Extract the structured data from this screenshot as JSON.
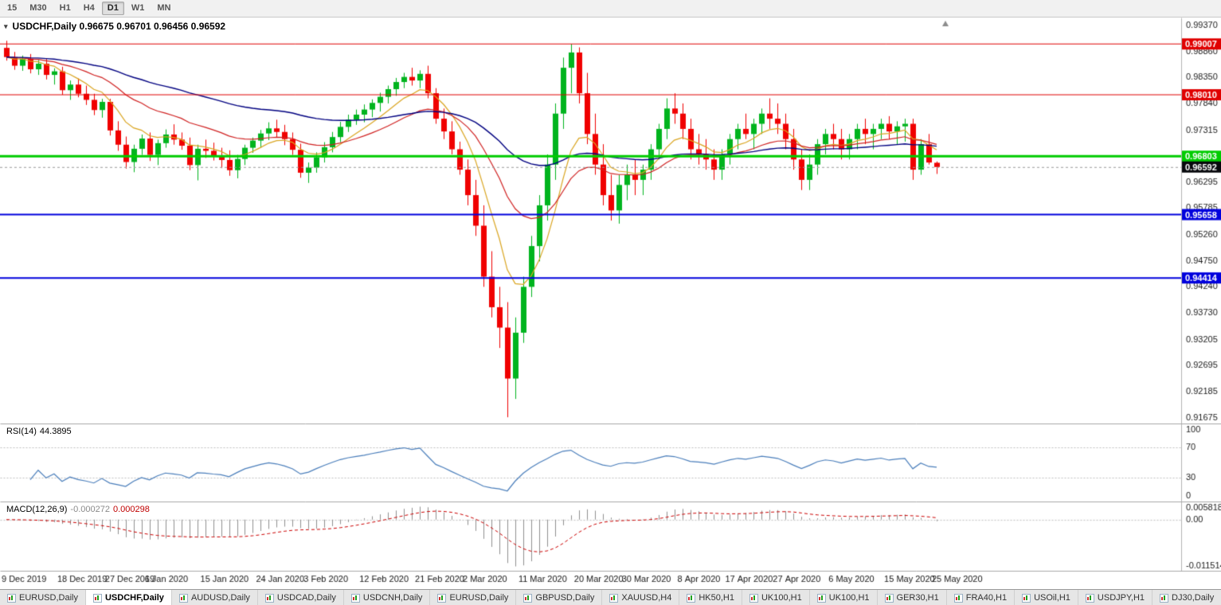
{
  "toolbar": {
    "timeframes": [
      {
        "label": "15",
        "active": false
      },
      {
        "label": "M30",
        "active": false
      },
      {
        "label": "H1",
        "active": false
      },
      {
        "label": "H4",
        "active": false
      },
      {
        "label": "D1",
        "active": true
      },
      {
        "label": "W1",
        "active": false
      },
      {
        "label": "MN",
        "active": false
      }
    ]
  },
  "chart": {
    "title": "USDCHF,Daily 0.96675 0.96701 0.96456 0.96592",
    "menu_triangle": "▾"
  },
  "price_axis": {
    "tick_labels": [
      "0.99370",
      "0.98860",
      "0.98350",
      "0.97840",
      "0.97315",
      "0.96805",
      "0.96295",
      "0.95785",
      "0.95260",
      "0.94750",
      "0.94240",
      "0.93730",
      "0.93205",
      "0.92695",
      "0.92185",
      "0.91675"
    ]
  },
  "levels": [
    {
      "value": 0.99007,
      "label": "0.99007",
      "color": "#e00000",
      "line_width": 1
    },
    {
      "value": 0.9801,
      "label": "0.98010",
      "color": "#e00000",
      "line_width": 1
    },
    {
      "value": 0.96803,
      "label": "0.96803",
      "color": "#00cc00",
      "line_width": 3
    },
    {
      "value": 0.95658,
      "label": "0.95658",
      "color": "#0000dd",
      "line_width": 2
    },
    {
      "value": 0.94414,
      "label": "0.94414",
      "color": "#0000dd",
      "line_width": 2
    }
  ],
  "current_price": {
    "value": 0.96592,
    "label": "0.96592",
    "box_color": "#07080c"
  },
  "indicators": {
    "rsi": {
      "name_label": "RSI(14)",
      "value_label": "44.3895",
      "period": 14,
      "levels": [
        "100",
        "70",
        "30",
        "0"
      ],
      "line_color": "#4a7ebb"
    },
    "macd": {
      "name_label": "MACD(12,26,9)",
      "main_value": "-0.000272",
      "signal_value": "0.000298",
      "fast": 12,
      "slow": 26,
      "signal": 9,
      "axis_top": "0.0058180",
      "axis_zero": "0.00",
      "axis_bottom": "-0.0115140",
      "hist_color": "#8f8f8f",
      "signal_color": "#cc0000"
    }
  },
  "x_axis": {
    "labels": [
      {
        "i": 0,
        "text": "9 Dec 2019"
      },
      {
        "i": 7,
        "text": "18 Dec 2019"
      },
      {
        "i": 13,
        "text": "27 Dec 2019"
      },
      {
        "i": 18,
        "text": "6 Jan 2020"
      },
      {
        "i": 25,
        "text": "15 Jan 2020"
      },
      {
        "i": 32,
        "text": "24 Jan 2020"
      },
      {
        "i": 38,
        "text": "3 Feb 2020"
      },
      {
        "i": 45,
        "text": "12 Feb 2020"
      },
      {
        "i": 52,
        "text": "21 Feb 2020"
      },
      {
        "i": 58,
        "text": "2 Mar 2020"
      },
      {
        "i": 65,
        "text": "11 Mar 2020"
      },
      {
        "i": 72,
        "text": "20 Mar 2020"
      },
      {
        "i": 78,
        "text": "30 Mar 2020"
      },
      {
        "i": 85,
        "text": "8 Apr 2020"
      },
      {
        "i": 91,
        "text": "17 Apr 2020"
      },
      {
        "i": 97,
        "text": "27 Apr 2020"
      },
      {
        "i": 104,
        "text": "6 May 2020"
      },
      {
        "i": 111,
        "text": "15 May 2020"
      },
      {
        "i": 117,
        "text": "25 May 2020"
      }
    ]
  },
  "bottom_tabs": [
    {
      "label": "EURUSD,Daily",
      "active": false
    },
    {
      "label": "USDCHF,Daily",
      "active": true
    },
    {
      "label": "AUDUSD,Daily",
      "active": false
    },
    {
      "label": "USDCAD,Daily",
      "active": false
    },
    {
      "label": "USDCNH,Daily",
      "active": false
    },
    {
      "label": "EURUSD,Daily",
      "active": false
    },
    {
      "label": "GBPUSD,Daily",
      "active": false
    },
    {
      "label": "XAUUSD,H4",
      "active": false
    },
    {
      "label": "HK50,H1",
      "active": false
    },
    {
      "label": "UK100,H1",
      "active": false
    },
    {
      "label": "UK100,H1",
      "active": false
    },
    {
      "label": "GER30,H1",
      "active": false
    },
    {
      "label": "FRA40,H1",
      "active": false
    },
    {
      "label": "USOil,H1",
      "active": false
    },
    {
      "label": "USDJPY,H1",
      "active": false
    },
    {
      "label": "DJ30,Daily",
      "active": false
    }
  ],
  "chart_data": {
    "type": "candlestick",
    "symbol": "USDCHF",
    "timeframe": "Daily",
    "title": "USDCHF,Daily",
    "ohlc_current": {
      "open": 0.96675,
      "high": 0.96701,
      "low": 0.96456,
      "close": 0.96592
    },
    "ylim": [
      0.91675,
      0.9937
    ],
    "colors": {
      "up": "#00b41e",
      "down": "#f00000"
    },
    "moving_averages": [
      {
        "period": 8,
        "color": "#daa520",
        "width": 1.2
      },
      {
        "period": 21,
        "color": "#d02020",
        "width": 1.2
      },
      {
        "period": 55,
        "color": "#000080",
        "width": 1.4
      }
    ],
    "support_resistance": [
      0.99007,
      0.9801,
      0.96803,
      0.95658,
      0.94414
    ],
    "candles": [
      [
        0.9893,
        0.9907,
        0.9868,
        0.9875
      ],
      [
        0.9875,
        0.9885,
        0.985,
        0.9858
      ],
      [
        0.9858,
        0.9878,
        0.9848,
        0.9872
      ],
      [
        0.9872,
        0.9881,
        0.9843,
        0.9851
      ],
      [
        0.9851,
        0.9869,
        0.984,
        0.9862
      ],
      [
        0.9862,
        0.9871,
        0.9831,
        0.984
      ],
      [
        0.984,
        0.9853,
        0.9821,
        0.9847
      ],
      [
        0.9847,
        0.9856,
        0.9801,
        0.981
      ],
      [
        0.981,
        0.9829,
        0.9791,
        0.9821
      ],
      [
        0.9821,
        0.9833,
        0.9796,
        0.9803
      ],
      [
        0.9803,
        0.9819,
        0.9781,
        0.9791
      ],
      [
        0.9791,
        0.9803,
        0.9761,
        0.9771
      ],
      [
        0.9771,
        0.9793,
        0.9756,
        0.9787
      ],
      [
        0.9787,
        0.9793,
        0.9721,
        0.9731
      ],
      [
        0.9731,
        0.9749,
        0.9691,
        0.9703
      ],
      [
        0.9703,
        0.9719,
        0.9656,
        0.9669
      ],
      [
        0.9669,
        0.9703,
        0.9649,
        0.9695
      ],
      [
        0.9695,
        0.9723,
        0.9683,
        0.9715
      ],
      [
        0.9715,
        0.9727,
        0.9671,
        0.9683
      ],
      [
        0.9683,
        0.9713,
        0.9663,
        0.9706
      ],
      [
        0.9706,
        0.9733,
        0.9697,
        0.9723
      ],
      [
        0.9723,
        0.9743,
        0.9703,
        0.9713
      ],
      [
        0.9713,
        0.9727,
        0.9693,
        0.9701
      ],
      [
        0.9701,
        0.9717,
        0.9653,
        0.9663
      ],
      [
        0.9663,
        0.9703,
        0.9633,
        0.9695
      ],
      [
        0.9695,
        0.9713,
        0.9677,
        0.9691
      ],
      [
        0.9691,
        0.9707,
        0.9672,
        0.9681
      ],
      [
        0.9681,
        0.9697,
        0.9657,
        0.9673
      ],
      [
        0.9673,
        0.9692,
        0.9642,
        0.9653
      ],
      [
        0.9653,
        0.9683,
        0.9637,
        0.9675
      ],
      [
        0.9675,
        0.9703,
        0.9663,
        0.9697
      ],
      [
        0.9697,
        0.9717,
        0.9687,
        0.9711
      ],
      [
        0.9711,
        0.9732,
        0.9697,
        0.9725
      ],
      [
        0.9725,
        0.9747,
        0.9712,
        0.9735
      ],
      [
        0.9735,
        0.9752,
        0.9717,
        0.9728
      ],
      [
        0.9728,
        0.9742,
        0.9702,
        0.9714
      ],
      [
        0.9714,
        0.9727,
        0.9683,
        0.9693
      ],
      [
        0.9693,
        0.9705,
        0.9638,
        0.9648
      ],
      [
        0.9648,
        0.9668,
        0.9628,
        0.9658
      ],
      [
        0.9658,
        0.9688,
        0.9648,
        0.9678
      ],
      [
        0.9678,
        0.9708,
        0.9668,
        0.9698
      ],
      [
        0.9698,
        0.9728,
        0.9688,
        0.9718
      ],
      [
        0.9718,
        0.9748,
        0.9708,
        0.9738
      ],
      [
        0.9738,
        0.9762,
        0.9728,
        0.9752
      ],
      [
        0.9752,
        0.9772,
        0.9742,
        0.9762
      ],
      [
        0.9762,
        0.9782,
        0.9747,
        0.9772
      ],
      [
        0.9772,
        0.9792,
        0.9757,
        0.9785
      ],
      [
        0.9785,
        0.9805,
        0.9768,
        0.9797
      ],
      [
        0.9797,
        0.9819,
        0.9784,
        0.9812
      ],
      [
        0.9812,
        0.9834,
        0.9799,
        0.9826
      ],
      [
        0.9826,
        0.9844,
        0.9814,
        0.9836
      ],
      [
        0.9836,
        0.9854,
        0.9819,
        0.9829
      ],
      [
        0.9829,
        0.9849,
        0.9814,
        0.9842
      ],
      [
        0.9842,
        0.9858,
        0.9794,
        0.9804
      ],
      [
        0.9804,
        0.9814,
        0.9744,
        0.9754
      ],
      [
        0.9754,
        0.9774,
        0.9714,
        0.9729
      ],
      [
        0.9729,
        0.9749,
        0.9684,
        0.9694
      ],
      [
        0.9694,
        0.9709,
        0.9644,
        0.9654
      ],
      [
        0.9654,
        0.9674,
        0.9584,
        0.9604
      ],
      [
        0.9604,
        0.9634,
        0.9524,
        0.9544
      ],
      [
        0.9544,
        0.9584,
        0.9424,
        0.9444
      ],
      [
        0.9444,
        0.9494,
        0.9364,
        0.9384
      ],
      [
        0.9384,
        0.9424,
        0.9304,
        0.9344
      ],
      [
        0.9344,
        0.9394,
        0.9168,
        0.9244
      ],
      [
        0.9244,
        0.9364,
        0.9204,
        0.9334
      ],
      [
        0.9334,
        0.9444,
        0.9314,
        0.9424
      ],
      [
        0.9424,
        0.9524,
        0.9404,
        0.9504
      ],
      [
        0.9504,
        0.9604,
        0.9474,
        0.9584
      ],
      [
        0.9584,
        0.9684,
        0.9554,
        0.9664
      ],
      [
        0.9664,
        0.9784,
        0.9634,
        0.9764
      ],
      [
        0.9764,
        0.9874,
        0.9734,
        0.9854
      ],
      [
        0.9854,
        0.9901,
        0.9804,
        0.9884
      ],
      [
        0.9884,
        0.9894,
        0.9784,
        0.9804
      ],
      [
        0.9804,
        0.9844,
        0.9704,
        0.9724
      ],
      [
        0.9724,
        0.9764,
        0.9644,
        0.9664
      ],
      [
        0.9664,
        0.9704,
        0.9584,
        0.9604
      ],
      [
        0.9604,
        0.9644,
        0.9554,
        0.9574
      ],
      [
        0.9574,
        0.9644,
        0.9548,
        0.9624
      ],
      [
        0.9624,
        0.9664,
        0.9594,
        0.9644
      ],
      [
        0.9644,
        0.9674,
        0.9604,
        0.9634
      ],
      [
        0.9634,
        0.9664,
        0.9604,
        0.9654
      ],
      [
        0.9654,
        0.9704,
        0.9634,
        0.9694
      ],
      [
        0.9694,
        0.9744,
        0.9674,
        0.9734
      ],
      [
        0.9734,
        0.9794,
        0.9714,
        0.9774
      ],
      [
        0.9774,
        0.9804,
        0.9744,
        0.9764
      ],
      [
        0.9764,
        0.9784,
        0.9714,
        0.9734
      ],
      [
        0.9734,
        0.9754,
        0.9674,
        0.9694
      ],
      [
        0.9694,
        0.9724,
        0.9664,
        0.9684
      ],
      [
        0.9684,
        0.9714,
        0.9654,
        0.9674
      ],
      [
        0.9674,
        0.9694,
        0.9634,
        0.9654
      ],
      [
        0.9654,
        0.9694,
        0.9634,
        0.9684
      ],
      [
        0.9684,
        0.9724,
        0.9664,
        0.9714
      ],
      [
        0.9714,
        0.9744,
        0.9694,
        0.9734
      ],
      [
        0.9734,
        0.9764,
        0.9714,
        0.9724
      ],
      [
        0.9724,
        0.9754,
        0.9694,
        0.9744
      ],
      [
        0.9744,
        0.9774,
        0.9724,
        0.9764
      ],
      [
        0.9764,
        0.9794,
        0.9734,
        0.9754
      ],
      [
        0.9754,
        0.9784,
        0.9724,
        0.9744
      ],
      [
        0.9744,
        0.9764,
        0.9694,
        0.9714
      ],
      [
        0.9714,
        0.9734,
        0.9654,
        0.9674
      ],
      [
        0.9674,
        0.9694,
        0.9614,
        0.9634
      ],
      [
        0.9634,
        0.9684,
        0.9614,
        0.9664
      ],
      [
        0.9664,
        0.9714,
        0.9644,
        0.9704
      ],
      [
        0.9704,
        0.9734,
        0.9684,
        0.9724
      ],
      [
        0.9724,
        0.9744,
        0.9694,
        0.9714
      ],
      [
        0.9714,
        0.9734,
        0.9674,
        0.9694
      ],
      [
        0.9694,
        0.9724,
        0.9674,
        0.9714
      ],
      [
        0.9714,
        0.9744,
        0.9694,
        0.9734
      ],
      [
        0.9734,
        0.9754,
        0.9704,
        0.9724
      ],
      [
        0.9724,
        0.9744,
        0.9694,
        0.9734
      ],
      [
        0.9734,
        0.9754,
        0.9714,
        0.9744
      ],
      [
        0.9744,
        0.9759,
        0.9714,
        0.9729
      ],
      [
        0.9729,
        0.9749,
        0.9704,
        0.9739
      ],
      [
        0.9739,
        0.9754,
        0.9709,
        0.9744
      ],
      [
        0.9744,
        0.9754,
        0.9634,
        0.9654
      ],
      [
        0.9654,
        0.9714,
        0.9644,
        0.9704
      ],
      [
        0.9704,
        0.9724,
        0.9664,
        0.9668
      ],
      [
        0.96675,
        0.96701,
        0.96456,
        0.96592
      ]
    ]
  }
}
